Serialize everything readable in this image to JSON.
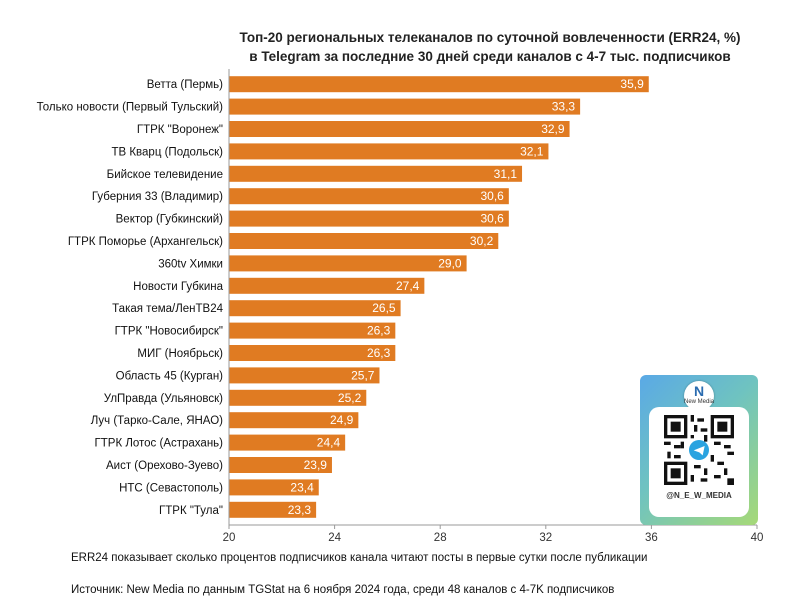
{
  "title_lines": [
    "Топ-20 региональных телеканалов по суточной вовлеченности (ERR24, %)",
    "в Telegram за последние 30 дней среди каналов с 4-7 тыс. подписчиков"
  ],
  "note": "ERR24 показывает сколько процентов подписчиков канала читают посты в первые сутки после публикации",
  "source": "Источник: New Media по данным TGStat на 6 ноября 2024 года, среди 48 каналов с 4-7K подписчиков",
  "qr": {
    "logo_letter": "N",
    "logo_text": "New Media",
    "handle": "@N_E_W_MEDIA",
    "icon": "telegram-icon"
  },
  "colors": {
    "bar": "#e07b22",
    "bar_label": "#ffffff",
    "axis": "#999999",
    "text": "#111111"
  },
  "chart_data": {
    "type": "bar",
    "orientation": "horizontal",
    "categories": [
      "Ветта (Пермь)",
      "Только новости (Первый Тульский)",
      "ГТРК \"Воронеж\"",
      "ТВ Кварц (Подольск)",
      "Бийское телевидение",
      "Губерния 33 (Владимир)",
      "Вектор (Губкинский)",
      "ГТРК Поморье (Архангельск)",
      "360tv Химки",
      "Новости Губкина",
      "Такая тема/ЛенТВ24",
      "ГТРК \"Новосибирск\"",
      "МИГ (Ноябрьск)",
      "Область 45 (Курган)",
      "УлПравда (Ульяновск)",
      "Луч (Тарко-Сале, ЯНАО)",
      "ГТРК Лотос (Астрахань)",
      "Аист (Орехово-Зуево)",
      "НТС (Севастополь)",
      "ГТРК \"Тула\""
    ],
    "values": [
      35.9,
      33.3,
      32.9,
      32.1,
      31.1,
      30.6,
      30.6,
      30.2,
      29.0,
      27.4,
      26.5,
      26.3,
      26.3,
      25.7,
      25.2,
      24.9,
      24.4,
      23.9,
      23.4,
      23.3
    ],
    "value_labels": [
      "35,9",
      "33,3",
      "32,9",
      "32,1",
      "31,1",
      "30,6",
      "30,6",
      "30,2",
      "29,0",
      "27,4",
      "26,5",
      "26,3",
      "26,3",
      "25,7",
      "25,2",
      "24,9",
      "24,4",
      "23,9",
      "23,4",
      "23,3"
    ],
    "xlim": [
      20,
      40
    ],
    "xticks": [
      "20",
      "24",
      "28",
      "32",
      "36",
      "40"
    ],
    "xtick_values": [
      20,
      24,
      28,
      32,
      36,
      40
    ],
    "grid": false,
    "legend": "none"
  }
}
